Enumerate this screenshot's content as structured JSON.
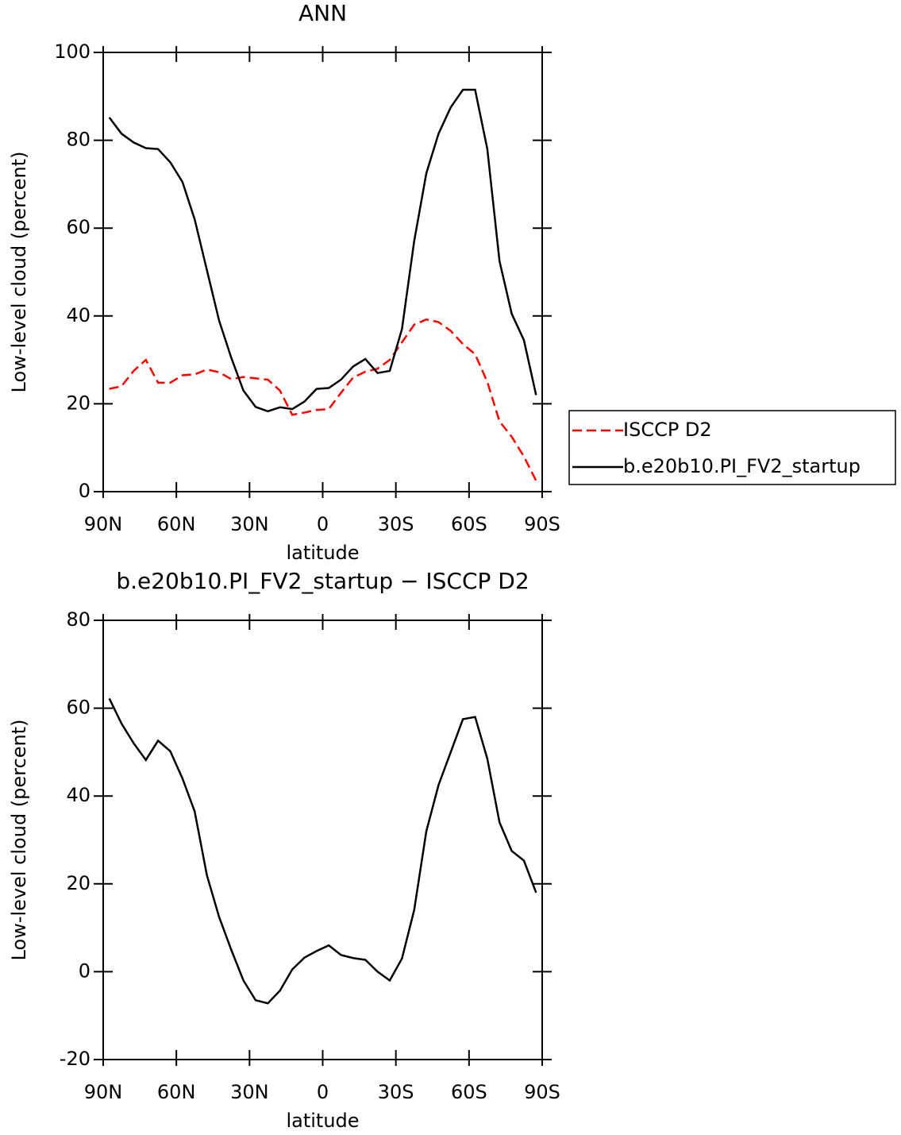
{
  "chart_data": [
    {
      "type": "line",
      "title": "ANN",
      "xlabel": "latitude",
      "ylabel": "Low-level cloud (percent)",
      "x": [
        87.5,
        82.5,
        77.5,
        72.5,
        67.5,
        62.5,
        57.5,
        52.5,
        47.5,
        42.5,
        37.5,
        32.5,
        27.5,
        22.5,
        17.5,
        12.5,
        7.5,
        2.5,
        -2.5,
        -7.5,
        -12.5,
        -17.5,
        -22.5,
        -27.5,
        -32.5,
        -37.5,
        -42.5,
        -47.5,
        -52.5,
        -57.5,
        -62.5,
        -67.5,
        -72.5,
        -77.5,
        -82.5,
        -87.5
      ],
      "series": [
        {
          "name": "ISCCP D2",
          "color": "#ff0000",
          "style": "dashed",
          "values": [
            23.4,
            24,
            27.5,
            30,
            24.8,
            24.8,
            26.5,
            26.7,
            27.8,
            27.2,
            25.6,
            26.1,
            25.8,
            25.5,
            23,
            17.5,
            18,
            18.6,
            18.8,
            22.5,
            26,
            27.3,
            28,
            30,
            34,
            38,
            39.2,
            38.6,
            36.6,
            33.6,
            31.3,
            25,
            16,
            12.5,
            8,
            2.5
          ]
        },
        {
          "name": "b.e20b10.PI_FV2_startup",
          "color": "#000000",
          "style": "solid",
          "values": [
            85.2,
            81.5,
            79.5,
            78.2,
            78,
            75,
            70.5,
            62,
            50.5,
            39,
            30.5,
            23,
            19.3,
            18.3,
            19.2,
            18.8,
            20.5,
            23.4,
            23.6,
            25.5,
            28.5,
            30.2,
            27,
            27.5,
            37,
            57,
            72.5,
            81.5,
            87.5,
            91.5,
            91.5,
            78,
            52.5,
            40.5,
            34.5,
            22
          ]
        }
      ],
      "xlim": [
        90,
        -90
      ],
      "ylim": [
        0,
        100
      ],
      "xticks": [
        {
          "value": 90,
          "label": "90N"
        },
        {
          "value": 60,
          "label": "60N"
        },
        {
          "value": 30,
          "label": "30N"
        },
        0,
        {
          "value": -30,
          "label": "30S"
        },
        {
          "value": -60,
          "label": "60S"
        },
        {
          "value": -90,
          "label": "90S"
        }
      ],
      "yticks": [
        0,
        20,
        40,
        60,
        80,
        100
      ],
      "legend": "right"
    },
    {
      "type": "line",
      "title": "b.e20b10.PI_FV2_startup − ISCCP D2",
      "xlabel": "latitude",
      "ylabel": "Low-level cloud (percent)",
      "x": [
        87.5,
        82.5,
        77.5,
        72.5,
        67.5,
        62.5,
        57.5,
        52.5,
        47.5,
        42.5,
        37.5,
        32.5,
        27.5,
        22.5,
        17.5,
        12.5,
        7.5,
        2.5,
        -2.5,
        -7.5,
        -12.5,
        -17.5,
        -22.5,
        -27.5,
        -32.5,
        -37.5,
        -42.5,
        -47.5,
        -52.5,
        -57.5,
        -62.5,
        -67.5,
        -72.5,
        -77.5,
        -82.5,
        -87.5
      ],
      "series": [
        {
          "color": "#000000",
          "style": "solid",
          "values": [
            62.2,
            56.5,
            52,
            48.2,
            52.6,
            50.2,
            44,
            36.5,
            22,
            12.5,
            5,
            -2,
            -6.5,
            -7.2,
            -4.3,
            0.5,
            3.2,
            4.7,
            6,
            3.8,
            3.1,
            2.7,
            0,
            -2,
            3,
            14,
            32,
            42.5,
            50,
            57.5,
            58,
            48.5,
            34,
            27.5,
            25.3,
            18
          ]
        }
      ],
      "xlim": [
        90,
        -90
      ],
      "ylim": [
        -20,
        80
      ],
      "xticks": [
        {
          "value": 90,
          "label": "90N"
        },
        {
          "value": 60,
          "label": "60N"
        },
        {
          "value": 30,
          "label": "30N"
        },
        0,
        {
          "value": -30,
          "label": "30S"
        },
        {
          "value": -60,
          "label": "60S"
        },
        {
          "value": -90,
          "label": "90S"
        }
      ],
      "yticks": [
        -20,
        0,
        20,
        40,
        60,
        80
      ]
    }
  ]
}
